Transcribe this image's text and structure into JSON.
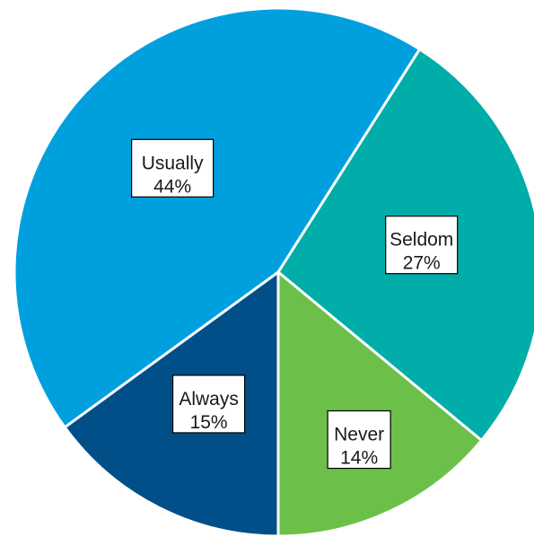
{
  "chart_data": {
    "type": "pie",
    "title": "",
    "start_angle_deg": -57.6,
    "direction": "clockwise",
    "slices": [
      {
        "category": "Seldom",
        "value": 27,
        "value_label": "27%",
        "color": "#00ADA9"
      },
      {
        "category": "Never",
        "value": 14,
        "value_label": "14%",
        "color": "#6CC04A"
      },
      {
        "category": "Always",
        "value": 15,
        "value_label": "15%",
        "color": "#004F88"
      },
      {
        "category": "Usually",
        "value": 44,
        "value_label": "44%",
        "color": "#00A0DF"
      }
    ],
    "legend": "none",
    "data_labels": "boxed category and percent inside slices"
  }
}
